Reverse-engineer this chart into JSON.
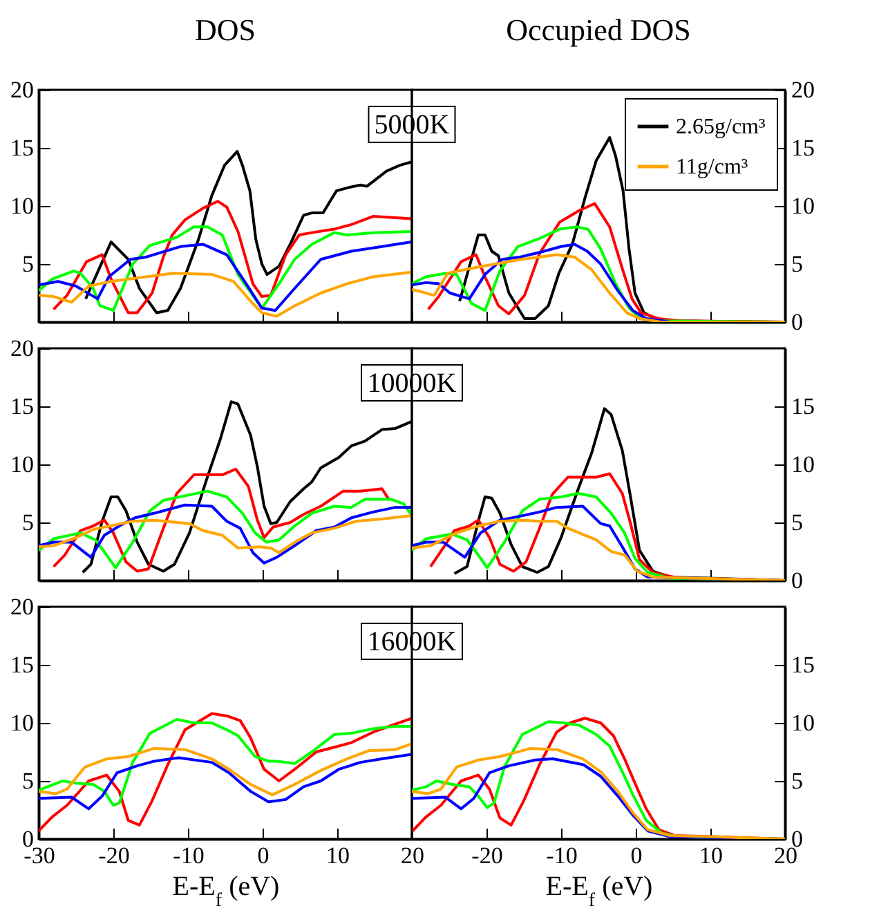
{
  "chart_data": [
    {
      "type": "line",
      "title": "DOS",
      "annotations": [
        "5000K"
      ],
      "xlim": [
        -30,
        20
      ],
      "ylim": [
        0,
        20
      ],
      "xticks": [
        -30,
        -20,
        -10,
        0,
        10,
        20
      ],
      "yticks": [
        5,
        10,
        15,
        20
      ],
      "tick_labels": "y",
      "series": [
        {
          "color": "#000000",
          "x": [
            -23.7,
            -20.3,
            -18,
            -16.5,
            -14.2,
            -12.7,
            -11,
            -8.6,
            -6.8,
            -5.1,
            -3.4,
            -2.7,
            -1.7,
            -0.9,
            -0.1,
            0.6,
            2.2,
            3.7,
            5.5,
            6.6,
            8.1,
            9.9,
            11.6,
            13.1,
            14,
            16.6,
            18.4,
            20
          ],
          "values": [
            2.0,
            6.9,
            5.4,
            2.9,
            0.8,
            1.0,
            2.9,
            7.1,
            10.9,
            13.5,
            14.7,
            13.5,
            11.3,
            7.1,
            5.0,
            4.1,
            4.8,
            6.7,
            9.2,
            9.4,
            9.4,
            11.3,
            11.6,
            11.8,
            11.7,
            13.0,
            13.5,
            13.8
          ]
        },
        {
          "color": "#ff0000",
          "x": [
            -28,
            -26.2,
            -23.6,
            -21.5,
            -20.3,
            -18,
            -16.8,
            -14.8,
            -13.3,
            -12.1,
            -10.4,
            -8,
            -6,
            -4.8,
            -3.3,
            -1.3,
            -0.1,
            1.1,
            3.1,
            4.9,
            6.6,
            9.6,
            11.9,
            14.8,
            20
          ],
          "values": [
            1.1,
            2.3,
            5.2,
            5.8,
            3.7,
            0.8,
            0.8,
            2.5,
            5.6,
            7.5,
            8.8,
            9.8,
            10.4,
            9.9,
            7.8,
            3.3,
            2.2,
            2.3,
            5.8,
            7.5,
            7.7,
            8.0,
            8.4,
            9.1,
            8.9
          ]
        },
        {
          "color": "#00ff00",
          "x": [
            -30,
            -28.2,
            -25.3,
            -24.4,
            -22.7,
            -21.8,
            -20,
            -17.4,
            -15.1,
            -11.5,
            -9.2,
            -7.4,
            -5.4,
            -3.3,
            -0.1,
            2.2,
            4.3,
            6.6,
            9.6,
            11.3,
            14.8,
            20
          ],
          "values": [
            2.7,
            3.7,
            4.4,
            4.2,
            2.9,
            1.4,
            1.0,
            5.0,
            6.6,
            7.3,
            8.2,
            8.2,
            7.5,
            4.1,
            1.2,
            3.3,
            5.4,
            6.7,
            7.7,
            7.5,
            7.7,
            7.8
          ]
        },
        {
          "color": "#0000ff",
          "x": [
            -30,
            -27.4,
            -25,
            -22.1,
            -20.6,
            -17.7,
            -15.6,
            -11,
            -8,
            -4.8,
            -2.2,
            -0.1,
            1.7,
            4.3,
            7.8,
            11.9,
            16,
            20
          ],
          "values": [
            3.2,
            3.5,
            3.1,
            2.0,
            3.9,
            5.4,
            5.6,
            6.5,
            6.7,
            5.8,
            3.3,
            1.2,
            1.0,
            2.9,
            5.4,
            6.1,
            6.5,
            6.9
          ]
        },
        {
          "color": "#ffa500",
          "x": [
            -30,
            -28,
            -25.6,
            -23.3,
            -20.3,
            -15.6,
            -12.1,
            -6.8,
            -3.9,
            -1.6,
            -0.1,
            1.9,
            4.3,
            7.8,
            11.3,
            14.8,
            20
          ],
          "values": [
            2.3,
            2.2,
            1.7,
            3.1,
            3.5,
            3.9,
            4.2,
            4.1,
            3.5,
            1.8,
            0.8,
            0.5,
            1.4,
            2.5,
            3.3,
            3.9,
            4.3
          ]
        }
      ]
    },
    {
      "type": "line",
      "title": "Occupied DOS",
      "legend": "top right",
      "xlim": [
        -30,
        20
      ],
      "ylim": [
        0,
        20
      ],
      "xticks": [
        -30,
        -20,
        -10,
        0,
        10,
        20
      ],
      "yticks": [
        0,
        5,
        10,
        15,
        20
      ],
      "tick_labels": "y",
      "series": [
        {
          "name": "2.65g/cm³",
          "color": "#000000",
          "x": [
            -23.6,
            -21.1,
            -20.2,
            -19.3,
            -18.4,
            -17,
            -14.9,
            -13.5,
            -11.7,
            -10.3,
            -8.5,
            -6.8,
            -5.3,
            -3.5,
            -2.7,
            -1.7,
            -0.9,
            -0.1,
            1.1,
            2.6,
            4.7,
            20
          ],
          "values": [
            1.8,
            7.5,
            7.5,
            6.1,
            5.7,
            2.5,
            0.3,
            0.3,
            1.4,
            4.2,
            6.7,
            10.7,
            13.9,
            15.9,
            14.3,
            11.3,
            6.3,
            2.5,
            0.8,
            0.3,
            0.1,
            0
          ]
        },
        {
          "color": "#ff0000",
          "x": [
            -27.8,
            -26.4,
            -23.4,
            -21.4,
            -20.2,
            -18.4,
            -17,
            -14.9,
            -12.9,
            -10.2,
            -7.6,
            -5.5,
            -3.5,
            -1.7,
            -0.5,
            0.7,
            3,
            5.9,
            20
          ],
          "values": [
            1.1,
            2.2,
            5.2,
            5.8,
            3.9,
            1.4,
            0.7,
            2.3,
            5.9,
            8.6,
            9.6,
            10.2,
            8.2,
            4.4,
            2.0,
            0.8,
            0.3,
            0.1,
            0
          ]
        },
        {
          "color": "#00ff00",
          "x": [
            -30,
            -28.1,
            -25.5,
            -24,
            -22,
            -20.2,
            -18.2,
            -15.8,
            -12.9,
            -10.2,
            -7.9,
            -6.4,
            -4.7,
            -2.7,
            -0.9,
            0.5,
            2.9,
            20
          ],
          "values": [
            3.3,
            3.9,
            4.2,
            4.1,
            1.6,
            1.0,
            4.4,
            6.5,
            7.2,
            8.0,
            8.2,
            8.0,
            6.3,
            3.3,
            1.2,
            0.4,
            0.1,
            0
          ]
        },
        {
          "color": "#0000ff",
          "x": [
            -30,
            -28.1,
            -26.4,
            -24.9,
            -22.3,
            -20.2,
            -17.9,
            -15.5,
            -12.9,
            -10,
            -8.2,
            -6.5,
            -4.7,
            -2.4,
            -0.4,
            1.4,
            4.7,
            20
          ],
          "values": [
            3.2,
            3.4,
            3.3,
            2.5,
            2.0,
            4.1,
            5.4,
            5.6,
            6.0,
            6.5,
            6.7,
            6.1,
            5.0,
            2.7,
            1.0,
            0.3,
            0.0,
            0
          ]
        },
        {
          "name": "11g/cm³",
          "color": "#ffa500",
          "x": [
            -30,
            -28.7,
            -27,
            -25.2,
            -22.3,
            -18.8,
            -15.3,
            -12.9,
            -10.6,
            -8.2,
            -5.9,
            -3.5,
            -1.2,
            0.5,
            3.4,
            20
          ],
          "values": [
            2.8,
            2.6,
            2.3,
            4.2,
            4.6,
            5.0,
            5.4,
            5.6,
            5.8,
            5.6,
            4.5,
            2.5,
            0.8,
            0.3,
            0.0,
            0
          ]
        }
      ]
    },
    {
      "type": "line",
      "annotations": [
        "10000K"
      ],
      "xlim": [
        -30,
        20
      ],
      "ylim": [
        0,
        20
      ],
      "xticks": [
        -30,
        -20,
        -10,
        0,
        10,
        20
      ],
      "yticks": [
        5,
        10,
        15,
        20
      ],
      "tick_labels": "y",
      "series": [
        {
          "color": "#000000",
          "x": [
            -24.1,
            -23,
            -21.5,
            -20.3,
            -19.4,
            -18.3,
            -16.8,
            -15.3,
            -13.3,
            -11.8,
            -9.8,
            -7.4,
            -5.7,
            -4.2,
            -3.3,
            -1.6,
            -0.7,
            0.2,
            1.1,
            1.9,
            3.7,
            5.5,
            6.6,
            7.8,
            10.2,
            11.9,
            13.7,
            16,
            17.8,
            20
          ],
          "values": [
            0.7,
            1.4,
            5.1,
            7.2,
            7.2,
            6.0,
            3.3,
            1.4,
            0.8,
            1.4,
            4.1,
            8.9,
            12.1,
            15.4,
            15.2,
            12.5,
            9.8,
            6.4,
            4.9,
            5.0,
            6.8,
            7.9,
            8.5,
            9.7,
            10.6,
            11.6,
            12.0,
            13.0,
            13.1,
            13.7
          ]
        },
        {
          "color": "#ff0000",
          "x": [
            -28,
            -26.5,
            -24.4,
            -22.7,
            -21.2,
            -20,
            -18.3,
            -16.8,
            -15.3,
            -13.3,
            -11.5,
            -9.2,
            -5.4,
            -3.6,
            -1.9,
            -0.7,
            0.2,
            1.4,
            3.7,
            5.5,
            7.8,
            10.8,
            13.1,
            16,
            16.9
          ],
          "values": [
            1.2,
            2.2,
            4.3,
            4.7,
            5.2,
            4.1,
            1.6,
            0.8,
            1.0,
            4.5,
            7.5,
            9.1,
            9.1,
            9.6,
            8.1,
            5.2,
            3.7,
            4.6,
            5.0,
            5.7,
            6.4,
            7.7,
            7.7,
            7.9,
            7.0
          ]
        },
        {
          "color": "#00ff00",
          "x": [
            -30,
            -28,
            -24.4,
            -22.4,
            -20.9,
            -19.7,
            -17.4,
            -15.1,
            -13.3,
            -10.4,
            -7.4,
            -4.8,
            -2.7,
            -1,
            0.5,
            2.2,
            4.3,
            6.6,
            9.6,
            11.9,
            13.7,
            17.2,
            18.9,
            20
          ],
          "values": [
            2.6,
            3.6,
            4.1,
            3.5,
            2.2,
            1.1,
            3.3,
            6.0,
            6.9,
            7.3,
            7.7,
            7.2,
            5.8,
            4.1,
            3.3,
            3.5,
            4.7,
            5.8,
            6.4,
            6.3,
            7.0,
            7.0,
            6.6,
            5.6
          ]
        },
        {
          "color": "#0000ff",
          "x": [
            -30,
            -28,
            -25.6,
            -23,
            -21.2,
            -19.2,
            -17.1,
            -14.5,
            -10.4,
            -6.8,
            -4.8,
            -3,
            -1.3,
            0.2,
            1.9,
            4.3,
            7.2,
            9.6,
            11.9,
            14.8,
            17.8,
            20
          ],
          "values": [
            3.0,
            3.3,
            3.3,
            2.0,
            3.9,
            4.7,
            5.4,
            5.8,
            6.5,
            6.4,
            5.1,
            4.5,
            2.4,
            1.5,
            2.0,
            3.0,
            4.3,
            4.6,
            5.4,
            5.9,
            6.3,
            6.3
          ]
        },
        {
          "color": "#ffa500",
          "x": [
            -30,
            -28,
            -25,
            -22.7,
            -19.7,
            -17.4,
            -14.5,
            -9.8,
            -8,
            -5.4,
            -3.3,
            -0.4,
            1.1,
            2.2,
            4.3,
            6.6,
            9.6,
            12.5,
            16,
            20
          ],
          "values": [
            2.9,
            3.0,
            3.7,
            4.4,
            4.8,
            5.1,
            5.2,
            4.9,
            4.3,
            3.9,
            2.8,
            2.9,
            2.8,
            2.4,
            3.3,
            4.1,
            4.5,
            5.1,
            5.3,
            5.6
          ]
        }
      ]
    },
    {
      "type": "line",
      "xlim": [
        -30,
        20
      ],
      "ylim": [
        0,
        20
      ],
      "xticks": [
        -30,
        -20,
        -10,
        0,
        10,
        20
      ],
      "yticks": [
        0,
        5,
        10,
        15
      ],
      "tick_labels": "y",
      "series": [
        {
          "color": "#000000",
          "x": [
            -24.3,
            -22.6,
            -21.1,
            -20.2,
            -19.3,
            -18.2,
            -16.7,
            -15.2,
            -13.2,
            -11.7,
            -10,
            -7.7,
            -5.9,
            -4.2,
            -3.3,
            -1.8,
            -0.7,
            0.5,
            2.3,
            4.6,
            20
          ],
          "values": [
            0.6,
            1.2,
            5.1,
            7.2,
            7.1,
            5.8,
            3.1,
            1.2,
            0.7,
            1.2,
            3.7,
            7.9,
            11.0,
            14.8,
            14.3,
            11.2,
            7.2,
            2.6,
            0.8,
            0.3,
            0
          ]
        },
        {
          "color": "#ff0000",
          "x": [
            -27.5,
            -25.8,
            -24.3,
            -22.3,
            -21.1,
            -19.6,
            -18.2,
            -16.4,
            -14.7,
            -12.9,
            -11.2,
            -9.1,
            -5.3,
            -3.5,
            -1.8,
            -0.7,
            0.5,
            2.3,
            5.8,
            20
          ],
          "values": [
            1.2,
            2.8,
            4.3,
            4.7,
            5.2,
            3.7,
            1.4,
            0.8,
            1.6,
            4.5,
            7.4,
            8.9,
            8.9,
            9.2,
            7.5,
            4.9,
            1.8,
            0.7,
            0.2,
            0
          ]
        },
        {
          "color": "#00ff00",
          "x": [
            -30,
            -28.1,
            -24.6,
            -22.6,
            -21.1,
            -19.9,
            -17.6,
            -15.2,
            -12.9,
            -10,
            -7.7,
            -5.3,
            -3.3,
            -1.5,
            -0.1,
            1.6,
            4.6,
            20
          ],
          "values": [
            2.6,
            3.6,
            4.0,
            3.5,
            2.2,
            1.1,
            3.3,
            6.0,
            7.0,
            7.2,
            7.5,
            7.2,
            5.8,
            4.1,
            1.9,
            0.7,
            0.2,
            0
          ]
        },
        {
          "color": "#0000ff",
          "x": [
            -30,
            -28.1,
            -25.8,
            -22.9,
            -20.8,
            -18.2,
            -15.8,
            -12.9,
            -10.6,
            -7.1,
            -4.7,
            -3.5,
            -1.8,
            -0.1,
            1.6,
            20
          ],
          "values": [
            3.0,
            3.3,
            3.3,
            2.0,
            4.1,
            5.2,
            5.5,
            5.9,
            6.3,
            6.4,
            4.9,
            4.7,
            2.9,
            1.0,
            0.3,
            0
          ]
        },
        {
          "color": "#ffa500",
          "x": [
            -30,
            -27.5,
            -24,
            -21.1,
            -18.2,
            -15.2,
            -12.9,
            -10.6,
            -9.1,
            -5.3,
            -3.3,
            -1.5,
            0.2,
            2.3,
            20
          ],
          "values": [
            2.8,
            3.0,
            4.1,
            4.7,
            5.1,
            5.2,
            5.1,
            5.1,
            4.5,
            3.5,
            2.5,
            2.2,
            0.8,
            0.3,
            0
          ]
        }
      ]
    },
    {
      "type": "line",
      "annotations": [
        "16000K"
      ],
      "xlabel": "E-E$_{f}$ (eV)",
      "xlim": [
        -30,
        20
      ],
      "ylim": [
        0,
        20
      ],
      "xticks": [
        -30,
        -20,
        -10,
        0,
        10,
        20
      ],
      "yticks": [
        0,
        5,
        10,
        15,
        20
      ],
      "series": [
        {
          "color": "#ff0000",
          "x": [
            -30,
            -28.2,
            -26.2,
            -23.3,
            -20.9,
            -19.2,
            -18,
            -16.5,
            -14.8,
            -12.7,
            -10.4,
            -8.6,
            -6.8,
            -4.8,
            -3,
            -1.6,
            0.2,
            2.2,
            4.3,
            7.2,
            9.6,
            11.9,
            14.8,
            17.8,
            20
          ],
          "values": [
            0.7,
            1.9,
            2.9,
            5.0,
            5.5,
            4.1,
            1.6,
            1.2,
            3.3,
            6.4,
            9.4,
            10.1,
            10.8,
            10.6,
            10.2,
            8.7,
            6.0,
            5.0,
            6.0,
            7.5,
            7.9,
            8.3,
            9.2,
            9.9,
            10.4
          ]
        },
        {
          "color": "#00ff00",
          "x": [
            -30,
            -28,
            -26.8,
            -25,
            -22.7,
            -21.2,
            -20,
            -19.2,
            -17.4,
            -15.1,
            -11.5,
            -9.2,
            -6.8,
            -4.8,
            -3.3,
            -1,
            0.8,
            1.9,
            4.3,
            6.6,
            9.6,
            11.9,
            14.8,
            17.8,
            20
          ],
          "values": [
            4.2,
            4.7,
            5.0,
            4.8,
            4.7,
            4.1,
            2.9,
            3.1,
            6.6,
            9.1,
            10.3,
            10.0,
            10.0,
            9.4,
            8.9,
            7.1,
            6.7,
            6.7,
            6.5,
            7.5,
            9.0,
            9.1,
            9.5,
            9.7,
            9.7
          ]
        },
        {
          "color": "#0000ff",
          "x": [
            -30,
            -25.6,
            -23.3,
            -21.5,
            -19.5,
            -16.8,
            -14.5,
            -11.2,
            -6.8,
            -4.5,
            -1.6,
            0.8,
            3.1,
            5.5,
            7.8,
            10.2,
            13.1,
            16,
            20
          ],
          "values": [
            3.5,
            3.6,
            2.6,
            3.7,
            5.7,
            6.3,
            6.7,
            7.0,
            6.6,
            5.7,
            4.1,
            3.2,
            3.4,
            4.5,
            5.0,
            6.0,
            6.6,
            6.9,
            7.3
          ]
        },
        {
          "color": "#ffa500",
          "x": [
            -30,
            -27.7,
            -26.2,
            -23.8,
            -20.9,
            -18,
            -14.5,
            -10.4,
            -6.8,
            -4.5,
            -1.6,
            1.3,
            4.3,
            7.8,
            11.3,
            14.2,
            17.8,
            20
          ],
          "values": [
            4.1,
            3.9,
            4.3,
            6.2,
            6.9,
            7.1,
            7.8,
            7.7,
            6.9,
            6.0,
            4.7,
            3.8,
            4.7,
            5.9,
            6.9,
            7.6,
            7.7,
            8.2
          ]
        }
      ]
    },
    {
      "type": "line",
      "xlabel": "E-E$_{f}$ (eV)",
      "xlim": [
        -30,
        20
      ],
      "ylim": [
        0,
        20
      ],
      "xticks": [
        {
          "value": -30,
          "label": null
        },
        -20,
        -10,
        0,
        10,
        20
      ],
      "yticks": [
        0,
        5,
        10,
        15
      ],
      "series": [
        {
          "color": "#ff0000",
          "x": [
            -29.9,
            -28.1,
            -26.1,
            -23.4,
            -21.1,
            -19.6,
            -18.2,
            -16.7,
            -15,
            -12.9,
            -10.6,
            -8.8,
            -6.8,
            -4.7,
            -3,
            -1.5,
            -0.1,
            1.4,
            3.1,
            5.2,
            20
          ],
          "values": [
            0.7,
            1.9,
            2.9,
            5.0,
            5.5,
            4.3,
            1.8,
            1.2,
            3.3,
            6.4,
            9.2,
            10.0,
            10.4,
            10.0,
            8.9,
            6.9,
            4.8,
            2.6,
            0.8,
            0.3,
            0
          ]
        },
        {
          "color": "#00ff00",
          "x": [
            -30,
            -28.1,
            -26.7,
            -24.6,
            -22.3,
            -21.1,
            -19.9,
            -19,
            -17.6,
            -15.2,
            -11.7,
            -9.7,
            -7.6,
            -5.3,
            -3.5,
            -1.8,
            -0.3,
            1.4,
            3.5,
            5.8,
            20
          ],
          "values": [
            4.2,
            4.5,
            5.0,
            4.7,
            4.5,
            3.7,
            2.7,
            3.1,
            6.2,
            9.0,
            10.1,
            10.0,
            9.8,
            9.0,
            8.0,
            5.8,
            3.7,
            1.6,
            0.5,
            0.2,
            0
          ]
        },
        {
          "color": "#0000ff",
          "x": [
            -30,
            -25.5,
            -23.4,
            -21.7,
            -19.6,
            -17,
            -13.5,
            -11.1,
            -7,
            -4.7,
            -2.4,
            -0.3,
            1.6,
            4.6,
            20
          ],
          "values": [
            3.5,
            3.6,
            2.6,
            3.5,
            5.7,
            6.3,
            6.8,
            6.9,
            6.4,
            5.4,
            3.7,
            2.0,
            0.7,
            0.2,
            0
          ]
        },
        {
          "color": "#ffa500",
          "x": [
            -30,
            -27.8,
            -26.1,
            -24,
            -21.1,
            -18.2,
            -14.1,
            -10.6,
            -7.1,
            -4.7,
            -2.4,
            -0.3,
            1.6,
            4.6,
            20
          ],
          "values": [
            4.1,
            3.9,
            4.3,
            6.2,
            6.8,
            7.1,
            7.8,
            7.7,
            6.9,
            5.8,
            4.1,
            2.2,
            0.8,
            0.3,
            0
          ]
        }
      ]
    }
  ]
}
